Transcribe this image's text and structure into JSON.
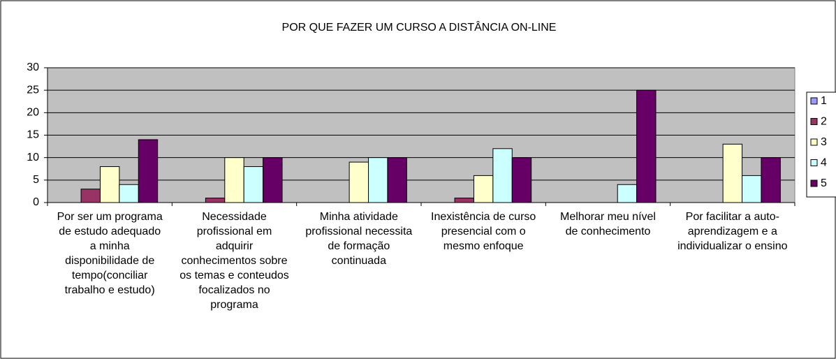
{
  "chart_data": {
    "type": "bar",
    "title": "POR QUE FAZER UM CURSO A DISTÂNCIA ON-LINE",
    "categories": [
      "Por ser um programa de estudo adequado a minha disponibilidade de tempo(conciliar trabalho e estudo)",
      "Necessidade profissional em adquirir conhecimentos sobre os temas e conteudos focalizados no programa",
      "Minha atividade profissional necessita de formação continuada",
      "Inexistência de curso presencial com o mesmo enfoque",
      "Melhorar meu nível de conhecimento",
      "Por facilitar a auto-aprendizagem e a individualizar o ensino"
    ],
    "series": [
      {
        "name": "1",
        "color": "#9999ff",
        "values": [
          0,
          0,
          0,
          0,
          0,
          0
        ]
      },
      {
        "name": "2",
        "color": "#993366",
        "values": [
          3,
          1,
          0,
          1,
          0,
          0
        ]
      },
      {
        "name": "3",
        "color": "#ffffcc",
        "values": [
          8,
          10,
          9,
          6,
          0,
          13
        ]
      },
      {
        "name": "4",
        "color": "#ccffff",
        "values": [
          4,
          8,
          10,
          12,
          4,
          6
        ]
      },
      {
        "name": "5",
        "color": "#660066",
        "values": [
          14,
          10,
          10,
          10,
          25,
          10
        ]
      }
    ],
    "ylim": [
      0,
      30
    ],
    "yticks": [
      0,
      5,
      10,
      15,
      20,
      25,
      30
    ],
    "grid": true,
    "legend": "right"
  }
}
